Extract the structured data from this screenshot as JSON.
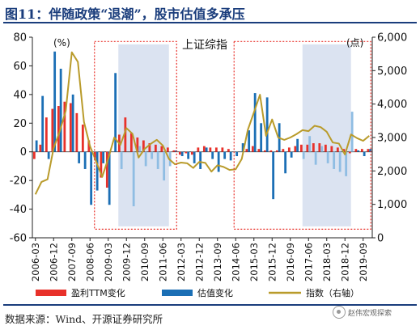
{
  "figure": {
    "title": "图11：伴随政策“退潮”，股市估值多承压"
  },
  "source": "数据来源：Wind、开源证券研究所",
  "watermark": "赵伟宏观探索",
  "chart_data": {
    "type": "bar",
    "title": "上证综指",
    "left_unit": "(%)",
    "right_unit": "(点)",
    "ylim_left": [
      -60,
      80
    ],
    "yticks_left": [
      -60,
      -40,
      -20,
      0,
      20,
      40,
      60,
      80
    ],
    "ylim_right": [
      0,
      6000
    ],
    "yticks_right": [
      "0",
      "1,000",
      "2,000",
      "3,000",
      "4,000",
      "5,000",
      "6,000"
    ],
    "x_start": "2006-03",
    "x_end": "2019-12",
    "xticks": [
      "2006-03",
      "2006-12",
      "2007-09",
      "2008-06",
      "2009-03",
      "2009-12",
      "2010-09",
      "2011-06",
      "2012-03",
      "2012-12",
      "2013-09",
      "2014-06",
      "2015-03",
      "2015-12",
      "2016-09",
      "2017-06",
      "2018-03",
      "2018-12",
      "2019-09"
    ],
    "colors": {
      "profit": "#e8312a",
      "valuation": "#1b6fb5",
      "valuation_light": "#8fbde3",
      "index": "#b99b2b",
      "shade": "#dbe3f1",
      "box": "#e8312a"
    },
    "shaded_regions": [
      [
        "2009-08",
        "2011-09"
      ],
      [
        "2017-03",
        "2019-03"
      ]
    ],
    "dotted_boxes": [
      [
        "2008-09",
        "2011-12"
      ],
      [
        "2014-06",
        "2019-12"
      ]
    ],
    "series": [
      {
        "name": "盈利TTM变化",
        "kind": "bar",
        "x": [
          "2006-03",
          "2006-06",
          "2006-09",
          "2006-12",
          "2007-03",
          "2007-06",
          "2007-09",
          "2007-12",
          "2008-03",
          "2008-06",
          "2008-09",
          "2008-12",
          "2009-03",
          "2009-06",
          "2009-09",
          "2009-12",
          "2010-03",
          "2010-06",
          "2010-09",
          "2010-12",
          "2011-03",
          "2011-06",
          "2011-09",
          "2011-12",
          "2012-03",
          "2012-06",
          "2012-09",
          "2012-12",
          "2013-03",
          "2013-06",
          "2013-09",
          "2013-12",
          "2014-03",
          "2014-06",
          "2014-09",
          "2014-12",
          "2015-03",
          "2015-06",
          "2015-09",
          "2015-12",
          "2016-03",
          "2016-06",
          "2016-09",
          "2016-12",
          "2017-03",
          "2017-06",
          "2017-09",
          "2017-12",
          "2018-03",
          "2018-06",
          "2018-09",
          "2018-12",
          "2019-03",
          "2019-06",
          "2019-09",
          "2019-12"
        ],
        "values": [
          -5,
          5,
          24,
          30,
          32,
          35,
          34,
          27,
          19,
          8,
          -5,
          -18,
          -25,
          0,
          12,
          24,
          13,
          10,
          8,
          6,
          5,
          4,
          3,
          1,
          -2,
          -1,
          -2,
          3,
          4,
          3,
          3,
          3,
          2,
          0,
          0,
          2,
          4,
          2,
          1,
          1,
          1,
          2,
          3,
          4,
          5,
          5,
          6,
          6,
          5,
          4,
          3,
          2,
          -1,
          2,
          2,
          2
        ]
      },
      {
        "name": "估值变化",
        "kind": "bar",
        "x": [
          "2006-03",
          "2006-06",
          "2006-09",
          "2006-12",
          "2007-03",
          "2007-06",
          "2007-09",
          "2007-12",
          "2008-03",
          "2008-06",
          "2008-09",
          "2008-12",
          "2009-03",
          "2009-06",
          "2009-09",
          "2009-12",
          "2010-03",
          "2010-06",
          "2010-09",
          "2010-12",
          "2011-03",
          "2011-06",
          "2011-09",
          "2011-12",
          "2012-03",
          "2012-06",
          "2012-09",
          "2012-12",
          "2013-03",
          "2013-06",
          "2013-09",
          "2013-12",
          "2014-03",
          "2014-06",
          "2014-09",
          "2014-12",
          "2015-03",
          "2015-06",
          "2015-09",
          "2015-12",
          "2016-03",
          "2016-06",
          "2016-09",
          "2016-12",
          "2017-03",
          "2017-06",
          "2017-09",
          "2017-12",
          "2018-03",
          "2018-06",
          "2018-09",
          "2018-12",
          "2019-03",
          "2019-06",
          "2019-09",
          "2019-12"
        ],
        "values": [
          8,
          39,
          -5,
          70,
          58,
          0,
          40,
          -8,
          -12,
          -37,
          -27,
          -8,
          -37,
          55,
          -12,
          0,
          -38,
          4,
          -10,
          -5,
          -12,
          -20,
          -10,
          1,
          -3,
          -5,
          -8,
          -12,
          3,
          -5,
          -14,
          -5,
          -6,
          -3,
          6,
          15,
          41,
          20,
          38,
          -33,
          20,
          -15,
          -4,
          9,
          -5,
          11,
          -9,
          4,
          -8,
          -12,
          -14,
          -17,
          28,
          1,
          -3,
          2
        ]
      },
      {
        "name": "指数（右轴）",
        "kind": "line",
        "x": [
          "2006-03",
          "2006-06",
          "2006-09",
          "2006-12",
          "2007-03",
          "2007-06",
          "2007-09",
          "2007-12",
          "2008-03",
          "2008-06",
          "2008-09",
          "2008-12",
          "2009-03",
          "2009-06",
          "2009-09",
          "2009-12",
          "2010-03",
          "2010-06",
          "2010-09",
          "2010-12",
          "2011-03",
          "2011-06",
          "2011-09",
          "2011-12",
          "2012-03",
          "2012-06",
          "2012-09",
          "2012-12",
          "2013-03",
          "2013-06",
          "2013-09",
          "2013-12",
          "2014-03",
          "2014-06",
          "2014-09",
          "2014-12",
          "2015-03",
          "2015-06",
          "2015-09",
          "2015-12",
          "2016-03",
          "2016-06",
          "2016-09",
          "2016-12",
          "2017-03",
          "2017-06",
          "2017-09",
          "2017-12",
          "2018-03",
          "2018-06",
          "2018-09",
          "2018-12",
          "2019-03",
          "2019-06",
          "2019-09",
          "2019-12"
        ],
        "values": [
          1300,
          1670,
          1750,
          2680,
          3180,
          3800,
          5550,
          5260,
          3470,
          2740,
          2290,
          1820,
          2370,
          3000,
          2780,
          3280,
          3110,
          2400,
          2660,
          2810,
          2930,
          2760,
          2360,
          2200,
          2250,
          2230,
          2090,
          2270,
          2240,
          1980,
          2170,
          2120,
          2030,
          2050,
          2360,
          3230,
          3750,
          4280,
          3050,
          3540,
          3000,
          2930,
          3000,
          3100,
          3220,
          3190,
          3350,
          3310,
          3170,
          2850,
          2820,
          2490,
          3090,
          2980,
          2900,
          3050
        ]
      }
    ]
  }
}
